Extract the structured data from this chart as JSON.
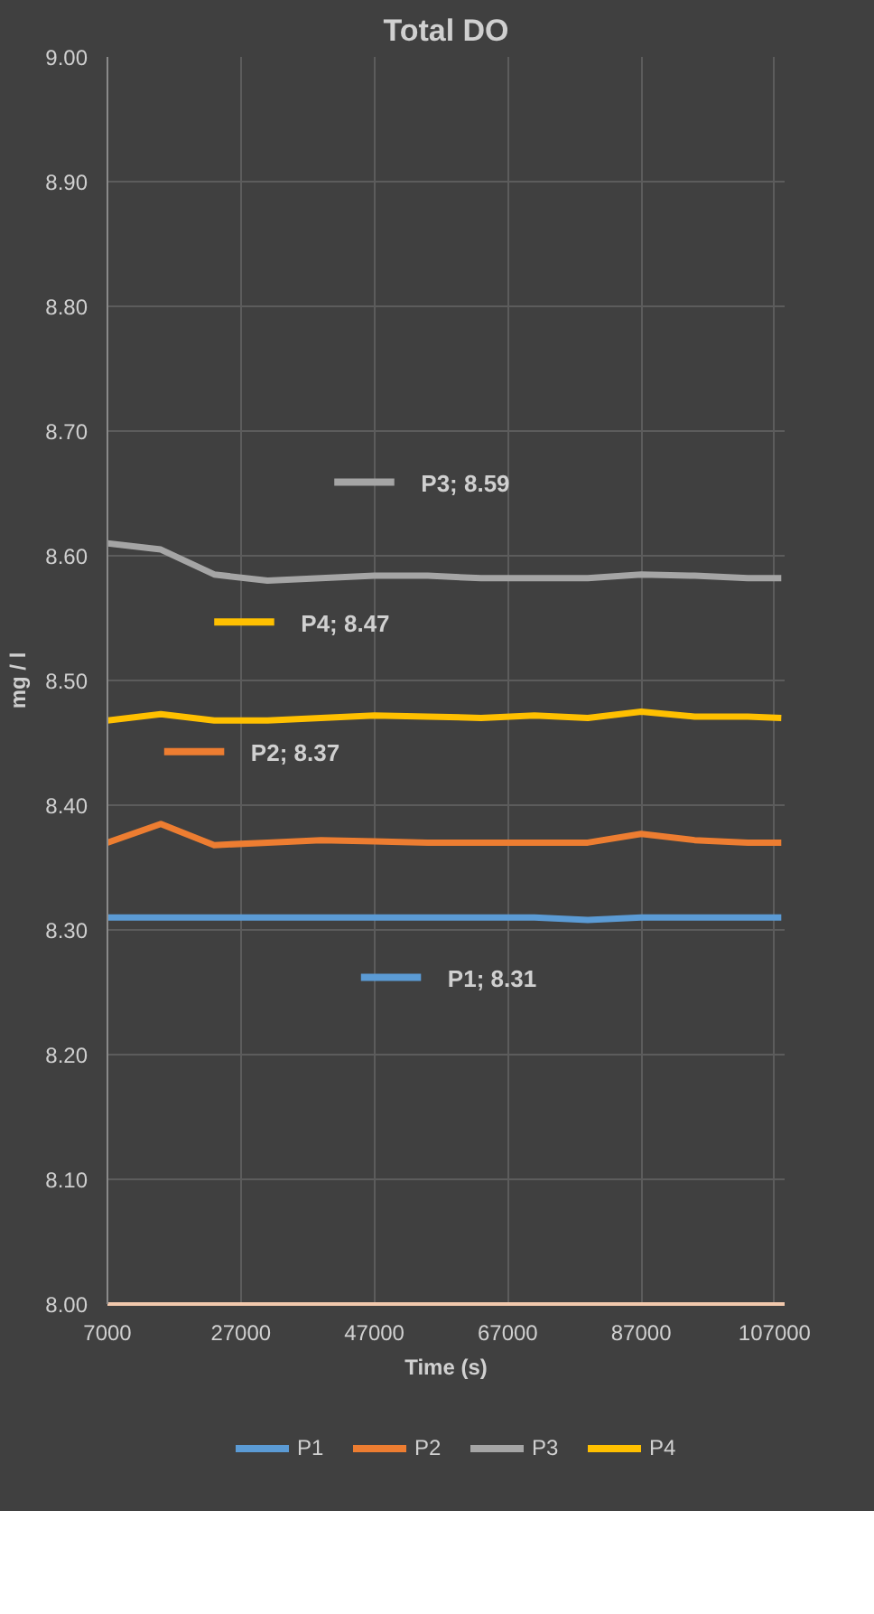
{
  "chart_data": {
    "type": "line",
    "title": "Total DO",
    "xlabel": "Time (s)",
    "ylabel": "mg / l",
    "x": [
      7000,
      15000,
      23000,
      31000,
      39000,
      47000,
      55000,
      63000,
      71000,
      79000,
      87000,
      95000,
      103000,
      108000
    ],
    "series": [
      {
        "name": "P1",
        "color": "#5b9bd5",
        "values": [
          8.31,
          8.31,
          8.31,
          8.31,
          8.31,
          8.31,
          8.31,
          8.31,
          8.31,
          8.308,
          8.31,
          8.31,
          8.31,
          8.31
        ]
      },
      {
        "name": "P2",
        "color": "#ed7d31",
        "values": [
          8.37,
          8.385,
          8.368,
          8.37,
          8.372,
          8.371,
          8.37,
          8.37,
          8.37,
          8.37,
          8.377,
          8.372,
          8.37,
          8.37
        ]
      },
      {
        "name": "P3",
        "color": "#a5a5a5",
        "values": [
          8.61,
          8.605,
          8.585,
          8.58,
          8.582,
          8.584,
          8.584,
          8.582,
          8.582,
          8.582,
          8.585,
          8.584,
          8.582,
          8.582
        ]
      },
      {
        "name": "P4",
        "color": "#ffc000",
        "values": [
          8.468,
          8.473,
          8.468,
          8.468,
          8.47,
          8.472,
          8.471,
          8.47,
          8.472,
          8.47,
          8.475,
          8.471,
          8.471,
          8.47
        ]
      }
    ],
    "annotations": [
      "P3; 8.59",
      "P4; 8.47",
      "P2; 8.37",
      "P1; 8.31"
    ],
    "xlim": [
      7000,
      108500
    ],
    "xticks": [
      7000,
      27000,
      47000,
      67000,
      87000,
      107000
    ],
    "ylim": [
      8.0,
      9.0
    ],
    "yticks": [
      {
        "value": 8.0,
        "label": "8.00"
      },
      {
        "value": 8.1,
        "label": "8.10"
      },
      {
        "value": 8.2,
        "label": "8.20"
      },
      {
        "value": 8.3,
        "label": "8.30"
      },
      {
        "value": 8.4,
        "label": "8.40"
      },
      {
        "value": 8.5,
        "label": "8.50"
      },
      {
        "value": 8.6,
        "label": "8.60"
      },
      {
        "value": 8.7,
        "label": "8.70"
      },
      {
        "value": 8.8,
        "label": "8.80"
      },
      {
        "value": 8.9,
        "label": "8.90"
      },
      {
        "value": 9.0,
        "label": "9.00"
      }
    ],
    "grid": true,
    "legend": "bottom",
    "line_style": "solid",
    "marker": "none"
  }
}
